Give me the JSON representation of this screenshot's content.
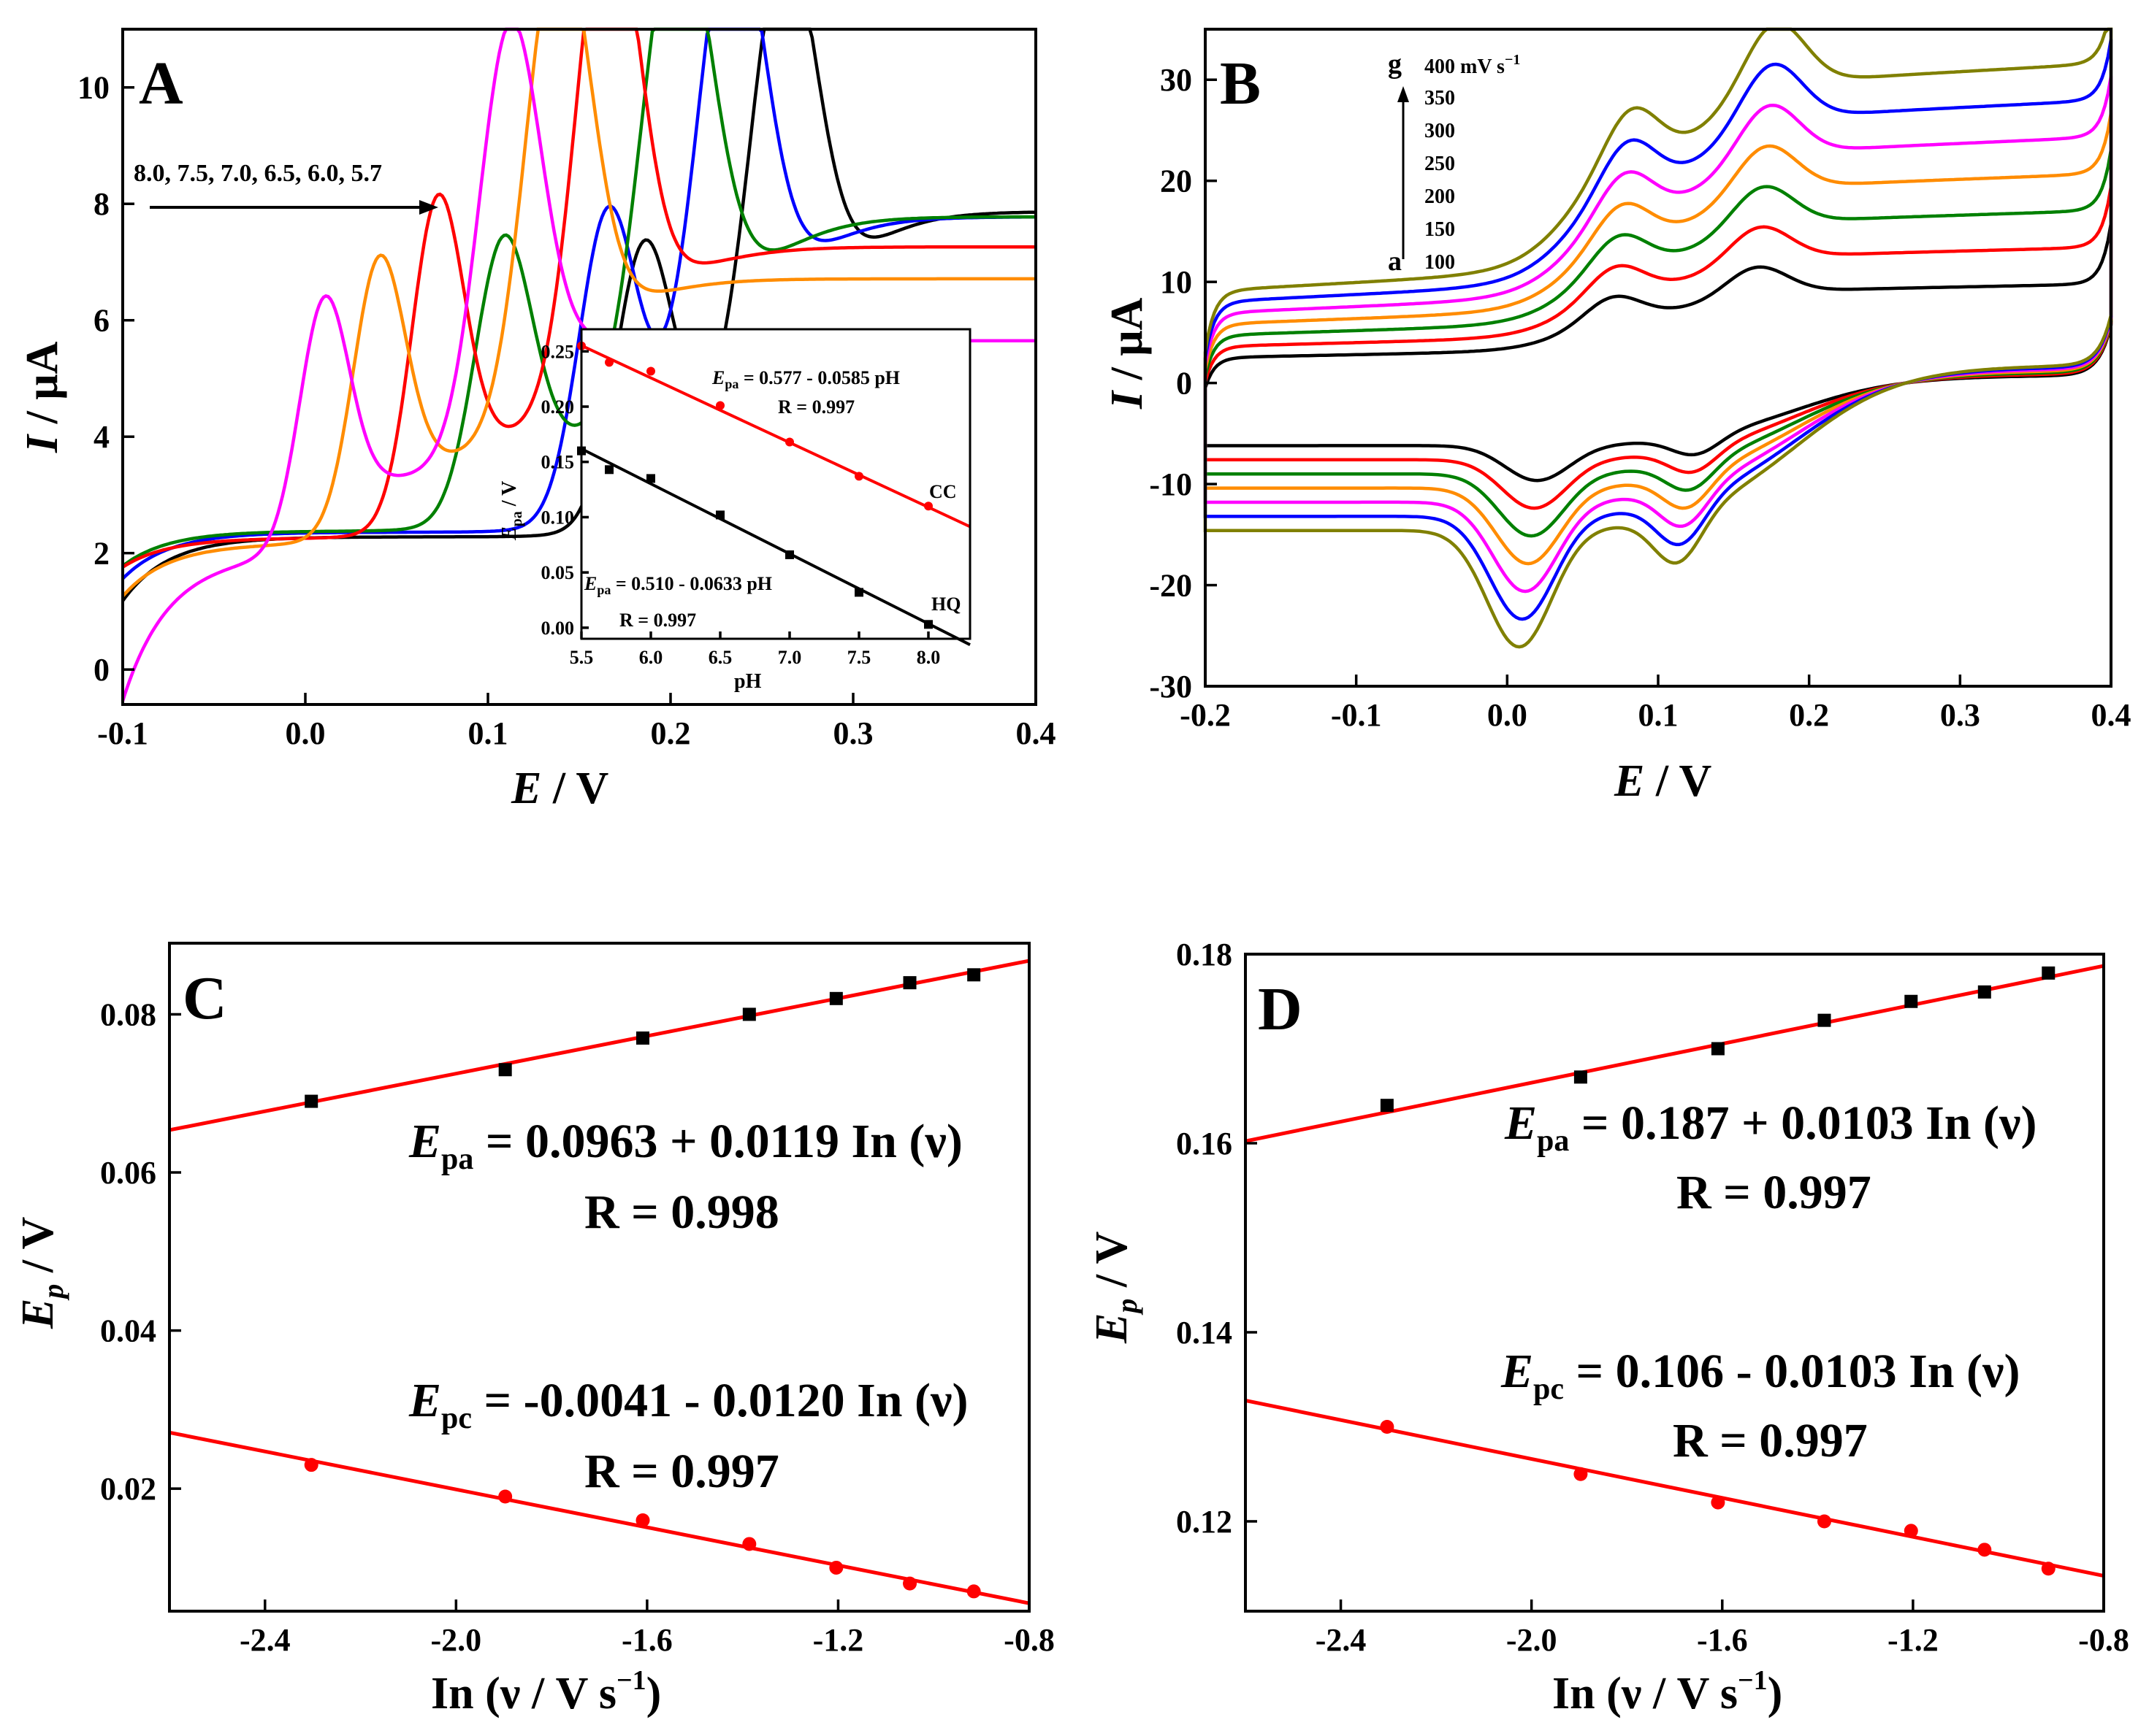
{
  "chart_data": [
    {
      "panel": "A",
      "type": "line",
      "xlabel_italic": "E",
      "xlabel_rest": " / V",
      "ylabel_italic": "I",
      "ylabel_rest": " / μA",
      "xlim": [
        -0.1,
        0.4
      ],
      "ylim": [
        -0.6,
        11
      ],
      "xticks": [
        "-0.1",
        "0.0",
        "0.1",
        "0.2",
        "0.3",
        "0.4"
      ],
      "yticks": [
        "0",
        "2",
        "4",
        "6",
        "8",
        "10"
      ],
      "arrow_label": "8.0, 7.5, 7.0, 6.5, 6.0, 5.7",
      "series": [
        {
          "name": "pH 8.0",
          "color": "#000000",
          "base": [
            1.2,
            2.2,
            2.3
          ],
          "peaks": [
            {
              "x": 0.185,
              "h": 4.3,
              "w": 0.022
            },
            {
              "x": 0.262,
              "h": 7.7,
              "w": 0.026
            }
          ],
          "plateau": 9.0,
          "tail": [
            0.3,
            0.4
          ]
        },
        {
          "name": "pH 7.5",
          "color": "#0000ff",
          "base": [
            1.6,
            2.2,
            2.4
          ],
          "peaks": [
            {
              "x": 0.165,
              "h": 4.7,
              "w": 0.022
            },
            {
              "x": 0.233,
              "h": 7.9,
              "w": 0.026
            }
          ],
          "plateau": 8.6,
          "tail": [
            0.28,
            0.4
          ]
        },
        {
          "name": "pH 7.0",
          "color": "#008000",
          "base": [
            1.8,
            2.3,
            2.4
          ],
          "peaks": [
            {
              "x": 0.108,
              "h": 4.3,
              "w": 0.022
            },
            {
              "x": 0.203,
              "h": 7.9,
              "w": 0.027
            }
          ],
          "plateau": 8.7,
          "tail": [
            0.26,
            0.4
          ]
        },
        {
          "name": "pH 6.5",
          "color": "#ff0000",
          "base": [
            1.8,
            2.1,
            2.3
          ],
          "peaks": [
            {
              "x": 0.072,
              "h": 5.0,
              "w": 0.02
            },
            {
              "x": 0.165,
              "h": 8.1,
              "w": 0.024
            }
          ],
          "plateau": 7.6,
          "tail": [
            0.23,
            0.4
          ]
        },
        {
          "name": "pH 6.0",
          "color": "#ff8c00",
          "base": [
            1.3,
            2.0,
            2.2
          ],
          "peaks": [
            {
              "x": 0.04,
              "h": 4.2,
              "w": 0.02
            },
            {
              "x": 0.138,
              "h": 7.8,
              "w": 0.025
            }
          ],
          "plateau": 7.0,
          "tail": [
            0.2,
            0.4
          ]
        },
        {
          "name": "pH 5.7",
          "color": "#ff00ff",
          "base": [
            -0.5,
            1.8,
            2.0
          ],
          "peaks": [
            {
              "x": 0.01,
              "h": 3.8,
              "w": 0.019
            },
            {
              "x": 0.112,
              "h": 6.9,
              "w": 0.024
            }
          ],
          "plateau": 5.6,
          "tail": [
            0.16,
            0.4
          ]
        }
      ],
      "inset": {
        "xlabel": "pH",
        "ylabel_italic": "E",
        "ylabel_sub": "pa",
        "ylabel_rest": " / V",
        "xlim": [
          5.5,
          8.3
        ],
        "ylim": [
          -0.01,
          0.27
        ],
        "xticks": [
          "5.5",
          "6.0",
          "6.5",
          "7.0",
          "7.5",
          "8.0"
        ],
        "yticks": [
          "0.00",
          "0.05",
          "0.10",
          "0.15",
          "0.20",
          "0.25"
        ],
        "series": [
          {
            "name": "CC",
            "color": "#ff0000",
            "x": [
              5.5,
              5.7,
              6.0,
              6.5,
              7.0,
              7.5,
              8.0
            ],
            "y": [
              0.255,
              0.24,
              0.232,
              0.201,
              0.168,
              0.137,
              0.11
            ],
            "fit": [
              0.577,
              -0.0585
            ],
            "eq_italic": "E",
            "eq_sub": "pa",
            "eq_rest": " = 0.577 - 0.0585 pH",
            "r": "R = 0.997"
          },
          {
            "name": "HQ",
            "color": "#000000",
            "x": [
              5.5,
              5.7,
              6.0,
              6.5,
              7.0,
              7.5,
              8.0
            ],
            "y": [
              0.16,
              0.143,
              0.135,
              0.102,
              0.066,
              0.032,
              0.003
            ],
            "fit": [
              0.51,
              -0.0633
            ],
            "eq_italic": "E",
            "eq_sub": "pa",
            "eq_rest": " = 0.510 - 0.0633 pH",
            "r": "R = 0.997"
          }
        ]
      }
    },
    {
      "panel": "B",
      "type": "line",
      "xlabel_italic": "E",
      "xlabel_rest": " / V",
      "ylabel_italic": "I",
      "ylabel_rest": " / μA",
      "xlim": [
        -0.2,
        0.4
      ],
      "ylim": [
        -30,
        35
      ],
      "xticks": [
        "-0.2",
        "-0.1",
        "0.0",
        "0.1",
        "0.2",
        "0.3",
        "0.4"
      ],
      "yticks": [
        "-30",
        "-20",
        "-10",
        "0",
        "10",
        "20",
        "30"
      ],
      "legend_top_letter": "g",
      "legend_bottom_letter": "a",
      "legend_unit": "mV s",
      "legend_exp": "−1",
      "legend_rates": [
        "400",
        "350",
        "300",
        "250",
        "200",
        "150",
        "100"
      ],
      "series": [
        {
          "name": "100 mV/s",
          "color": "#000000",
          "s": 0.0
        },
        {
          "name": "150 mV/s",
          "color": "#ff0000",
          "s": 1.0
        },
        {
          "name": "200 mV/s",
          "color": "#008000",
          "s": 2.0
        },
        {
          "name": "250 mV/s",
          "color": "#ff8c00",
          "s": 3.0
        },
        {
          "name": "300 mV/s",
          "color": "#ff00ff",
          "s": 4.0
        },
        {
          "name": "350 mV/s",
          "color": "#0000ff",
          "s": 5.0
        },
        {
          "name": "400 mV/s",
          "color": "#808000",
          "s": 6.0
        }
      ]
    },
    {
      "panel": "C",
      "type": "scatter",
      "xlabel": "In (ν / V s",
      "xlabel_exp": "−1",
      "xlabel_close": ")",
      "ylabel_italic": "E",
      "ylabel_sub": "p",
      "ylabel_rest": " / V",
      "xlim": [
        -2.6,
        -0.8
      ],
      "ylim": [
        0.0045,
        0.089
      ],
      "xticks": [
        -2.4,
        -2.0,
        -1.6,
        -1.2,
        -0.8
      ],
      "xtick_labels": [
        "-2.4",
        "-2.0",
        "-1.6",
        "-1.2",
        "-0.8"
      ],
      "yticks": [
        0.02,
        0.04,
        0.06,
        0.08
      ],
      "ytick_labels": [
        "0.02",
        "0.04",
        "0.06",
        "0.08"
      ],
      "series": [
        {
          "name": "Epa",
          "marker": "square",
          "color": "#000000",
          "x": [
            -2.303,
            -1.897,
            -1.609,
            -1.386,
            -1.204,
            -1.05,
            -0.916
          ],
          "y": [
            0.069,
            0.073,
            0.077,
            0.08,
            0.082,
            0.084,
            0.085
          ],
          "fit": [
            0.0963,
            0.0119
          ]
        },
        {
          "name": "Epc",
          "marker": "circle",
          "color": "#ff0000",
          "x": [
            -2.303,
            -1.897,
            -1.609,
            -1.386,
            -1.204,
            -1.05,
            -0.916
          ],
          "y": [
            0.023,
            0.019,
            0.016,
            0.013,
            0.01,
            0.008,
            0.007
          ],
          "fit": [
            -0.0041,
            -0.012
          ]
        }
      ],
      "eq1_italic": "E",
      "eq1_sub": "pa",
      "eq1_rest": " = 0.0963 + 0.0119 In (ν)",
      "eq1_r": "R = 0.998",
      "eq2_italic": "E",
      "eq2_sub": "pc",
      "eq2_rest": " = -0.0041 - 0.0120 In (ν)",
      "eq2_r": "R = 0.997"
    },
    {
      "panel": "D",
      "type": "scatter",
      "xlabel": "In (ν / V s",
      "xlabel_exp": "−1",
      "xlabel_close": ")",
      "ylabel_italic": "E",
      "ylabel_sub": "p",
      "ylabel_rest": " / V",
      "xlim": [
        -2.6,
        -0.8
      ],
      "ylim": [
        0.1105,
        0.18
      ],
      "xticks": [
        -2.4,
        -2.0,
        -1.6,
        -1.2,
        -0.8
      ],
      "xtick_labels": [
        "-2.4",
        "-2.0",
        "-1.6",
        "-1.2",
        "-0.8"
      ],
      "yticks": [
        0.12,
        0.14,
        0.16,
        0.18
      ],
      "ytick_labels": [
        "0.12",
        "0.14",
        "0.16",
        "0.18"
      ],
      "series": [
        {
          "name": "Epa",
          "marker": "square",
          "color": "#000000",
          "x": [
            -2.303,
            -1.897,
            -1.609,
            -1.386,
            -1.204,
            -1.05,
            -0.916
          ],
          "y": [
            0.164,
            0.167,
            0.17,
            0.173,
            0.175,
            0.176,
            0.178
          ],
          "fit": [
            0.187,
            0.0103
          ]
        },
        {
          "name": "Epc",
          "marker": "circle",
          "color": "#ff0000",
          "x": [
            -2.303,
            -1.897,
            -1.609,
            -1.386,
            -1.204,
            -1.05,
            -0.916
          ],
          "y": [
            0.13,
            0.125,
            0.122,
            0.12,
            0.119,
            0.117,
            0.115
          ],
          "fit": [
            0.106,
            -0.0103
          ]
        }
      ],
      "eq1_italic": "E",
      "eq1_sub": "pa",
      "eq1_rest": " = 0.187 + 0.0103 In (ν)",
      "eq1_r": "R = 0.997",
      "eq2_italic": "E",
      "eq2_sub": "pc",
      "eq2_rest": " = 0.106 - 0.0103 In (ν)",
      "eq2_r": "R = 0.997"
    }
  ]
}
